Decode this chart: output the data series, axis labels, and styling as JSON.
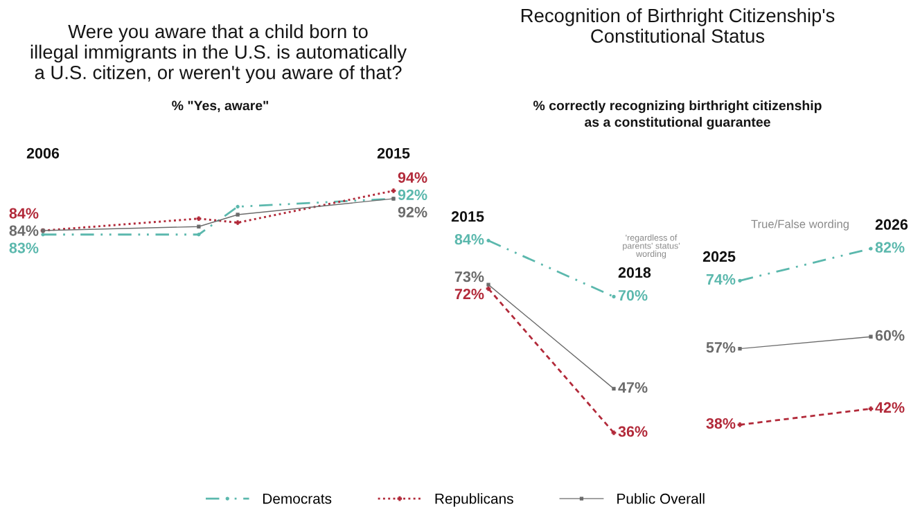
{
  "chart_data": [
    {
      "type": "line",
      "title": "Were you aware that a child born to\nillegal immigrants in the U.S. is automatically\na U.S. citizen, or weren't you aware of that?",
      "subtitle": "% \"Yes, aware\"",
      "x": [
        2006,
        2010,
        2011,
        2015
      ],
      "xlim": [
        2006,
        2015
      ],
      "xticks": [
        2006,
        2015
      ],
      "tick_labels": "x",
      "legend": "bottom",
      "series": [
        {
          "name": "Democrats",
          "color": "#5bb8ad",
          "values": [
            83,
            83,
            90,
            92
          ],
          "value_labels": [
            "83%",
            null,
            null,
            "92%"
          ],
          "line_style": "dashdot",
          "marker": "circle"
        },
        {
          "name": "Republicans",
          "color": "#b22a3a",
          "values": [
            84,
            87,
            86,
            94
          ],
          "value_labels": [
            "84%",
            null,
            null,
            "94%"
          ],
          "line_style": "dotted",
          "marker": "cross"
        },
        {
          "name": "Public Overall",
          "color": "#6b6b6b",
          "values": [
            84,
            85,
            88,
            92
          ],
          "value_labels": [
            "84%",
            null,
            null,
            "92%"
          ],
          "line_style": "solid",
          "marker": "square"
        }
      ]
    },
    {
      "type": "line",
      "title": "Recognition of Birthright Citizenship's\nConstitutional Status",
      "subtitle": "% correctly recognizing birthright citizenship\nas a constitutional guarantee",
      "categories": [
        "2015",
        "2018"
      ],
      "tick_labels": "x",
      "series": [
        {
          "color": "#5bb8ad",
          "values": [
            84,
            70
          ],
          "value_labels": [
            "84%",
            "70%"
          ],
          "line_style": "dashdot",
          "marker": "circle"
        },
        {
          "color": "#b22a3a",
          "values": [
            72,
            36
          ],
          "value_labels": [
            "72%",
            "36%"
          ],
          "line_style": "dashed",
          "marker": "cross"
        },
        {
          "color": "#6b6b6b",
          "values": [
            73,
            47
          ],
          "value_labels": [
            "73%",
            "47%"
          ],
          "line_style": "solid",
          "marker": "square"
        }
      ],
      "annotations": [
        "'regardless of\nparents' status'\nwording"
      ]
    },
    {
      "type": "line",
      "categories": [
        "2025",
        "2026"
      ],
      "tick_labels": "x",
      "series": [
        {
          "color": "#5bb8ad",
          "values": [
            74,
            82
          ],
          "value_labels": [
            "74%",
            "82%"
          ],
          "line_style": "dashdot",
          "marker": "circle"
        },
        {
          "color": "#b22a3a",
          "values": [
            38,
            42
          ],
          "value_labels": [
            "38%",
            "42%"
          ],
          "line_style": "dashed",
          "marker": "cross"
        },
        {
          "color": "#6b6b6b",
          "values": [
            57,
            60
          ],
          "value_labels": [
            "57%",
            "60%"
          ],
          "line_style": "solid",
          "marker": "square"
        }
      ],
      "annotations": [
        "True/False wording"
      ]
    }
  ]
}
